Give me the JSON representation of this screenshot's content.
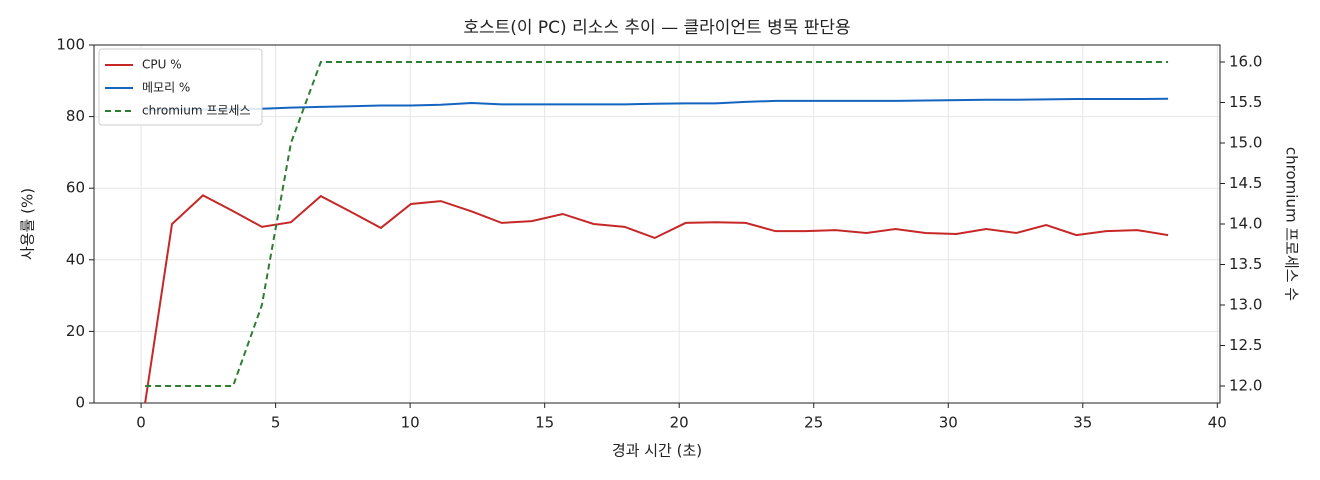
{
  "chart_data": {
    "type": "line",
    "title": "호스트(이 PC) 리소스 추이 — 클라이언트 병목 판단용",
    "x_label": "경과 시간 (초)",
    "y_label": "사용률 (%)",
    "y2_label": "chromium 프로세스 수",
    "x": [
      0.15,
      1.15,
      2.3,
      3.42,
      4.49,
      5.57,
      6.68,
      7.8,
      8.91,
      10.03,
      11.14,
      12.29,
      13.4,
      14.52,
      15.67,
      16.82,
      17.97,
      19.09,
      20.24,
      21.35,
      22.47,
      23.58,
      24.69,
      25.81,
      26.96,
      28.04,
      29.15,
      30.3,
      31.41,
      32.53,
      33.64,
      34.76,
      35.87,
      37.02,
      38.17
    ],
    "series": [
      {
        "name": "CPU %",
        "color": "#c62828",
        "linestyle": "solid",
        "axis": "y",
        "values": [
          0,
          50,
          58,
          53.6,
          49.2,
          50.5,
          57.8,
          53.4,
          48.9,
          55.6,
          56.4,
          53.5,
          50.3,
          50.8,
          52.8,
          50,
          49.2,
          46.1,
          50.3,
          50.5,
          50.3,
          48,
          48,
          48.3,
          47.5,
          48.6,
          47.5,
          47.2,
          48.6,
          47.5,
          49.7,
          46.9,
          48,
          48.3,
          46.9
        ]
      },
      {
        "name": "메모리 %",
        "color": "#1565c0",
        "linestyle": "solid",
        "axis": "y",
        "values": [
          81.8,
          82,
          82,
          82.1,
          82.2,
          82.5,
          82.7,
          82.9,
          83.1,
          83.1,
          83.3,
          83.8,
          83.4,
          83.4,
          83.4,
          83.4,
          83.4,
          83.6,
          83.7,
          83.7,
          84.1,
          84.4,
          84.4,
          84.4,
          84.4,
          84.4,
          84.5,
          84.6,
          84.7,
          84.7,
          84.8,
          84.9,
          84.9,
          84.9,
          85.0
        ]
      },
      {
        "name": "chromium 프로세스",
        "color": "#2e7d32",
        "linestyle": "dashed",
        "axis": "y2",
        "values": [
          12,
          12,
          12,
          12,
          13,
          15,
          16,
          16,
          16,
          16,
          16,
          16,
          16,
          16,
          16,
          16,
          16,
          16,
          16,
          16,
          16,
          16,
          16,
          16,
          16,
          16,
          16,
          16,
          16,
          16,
          16,
          16,
          16,
          16,
          16
        ]
      }
    ],
    "xlim": [
      -1.75,
      40.1
    ],
    "xticks": [
      0,
      5,
      10,
      15,
      20,
      25,
      30,
      35,
      40
    ],
    "ylim": [
      0,
      100
    ],
    "yticks": [
      0,
      20,
      40,
      60,
      80,
      100
    ],
    "y2lim": [
      11.79,
      16.21
    ],
    "y2ticks": [
      {
        "value": 12,
        "label": "12.0"
      },
      12.5,
      {
        "value": 13,
        "label": "13.0"
      },
      13.5,
      {
        "value": 14,
        "label": "14.0"
      },
      14.5,
      {
        "value": 15,
        "label": "15.0"
      },
      15.5,
      {
        "value": 16,
        "label": "16.0"
      }
    ],
    "grid": true,
    "legend": "upper-left"
  }
}
